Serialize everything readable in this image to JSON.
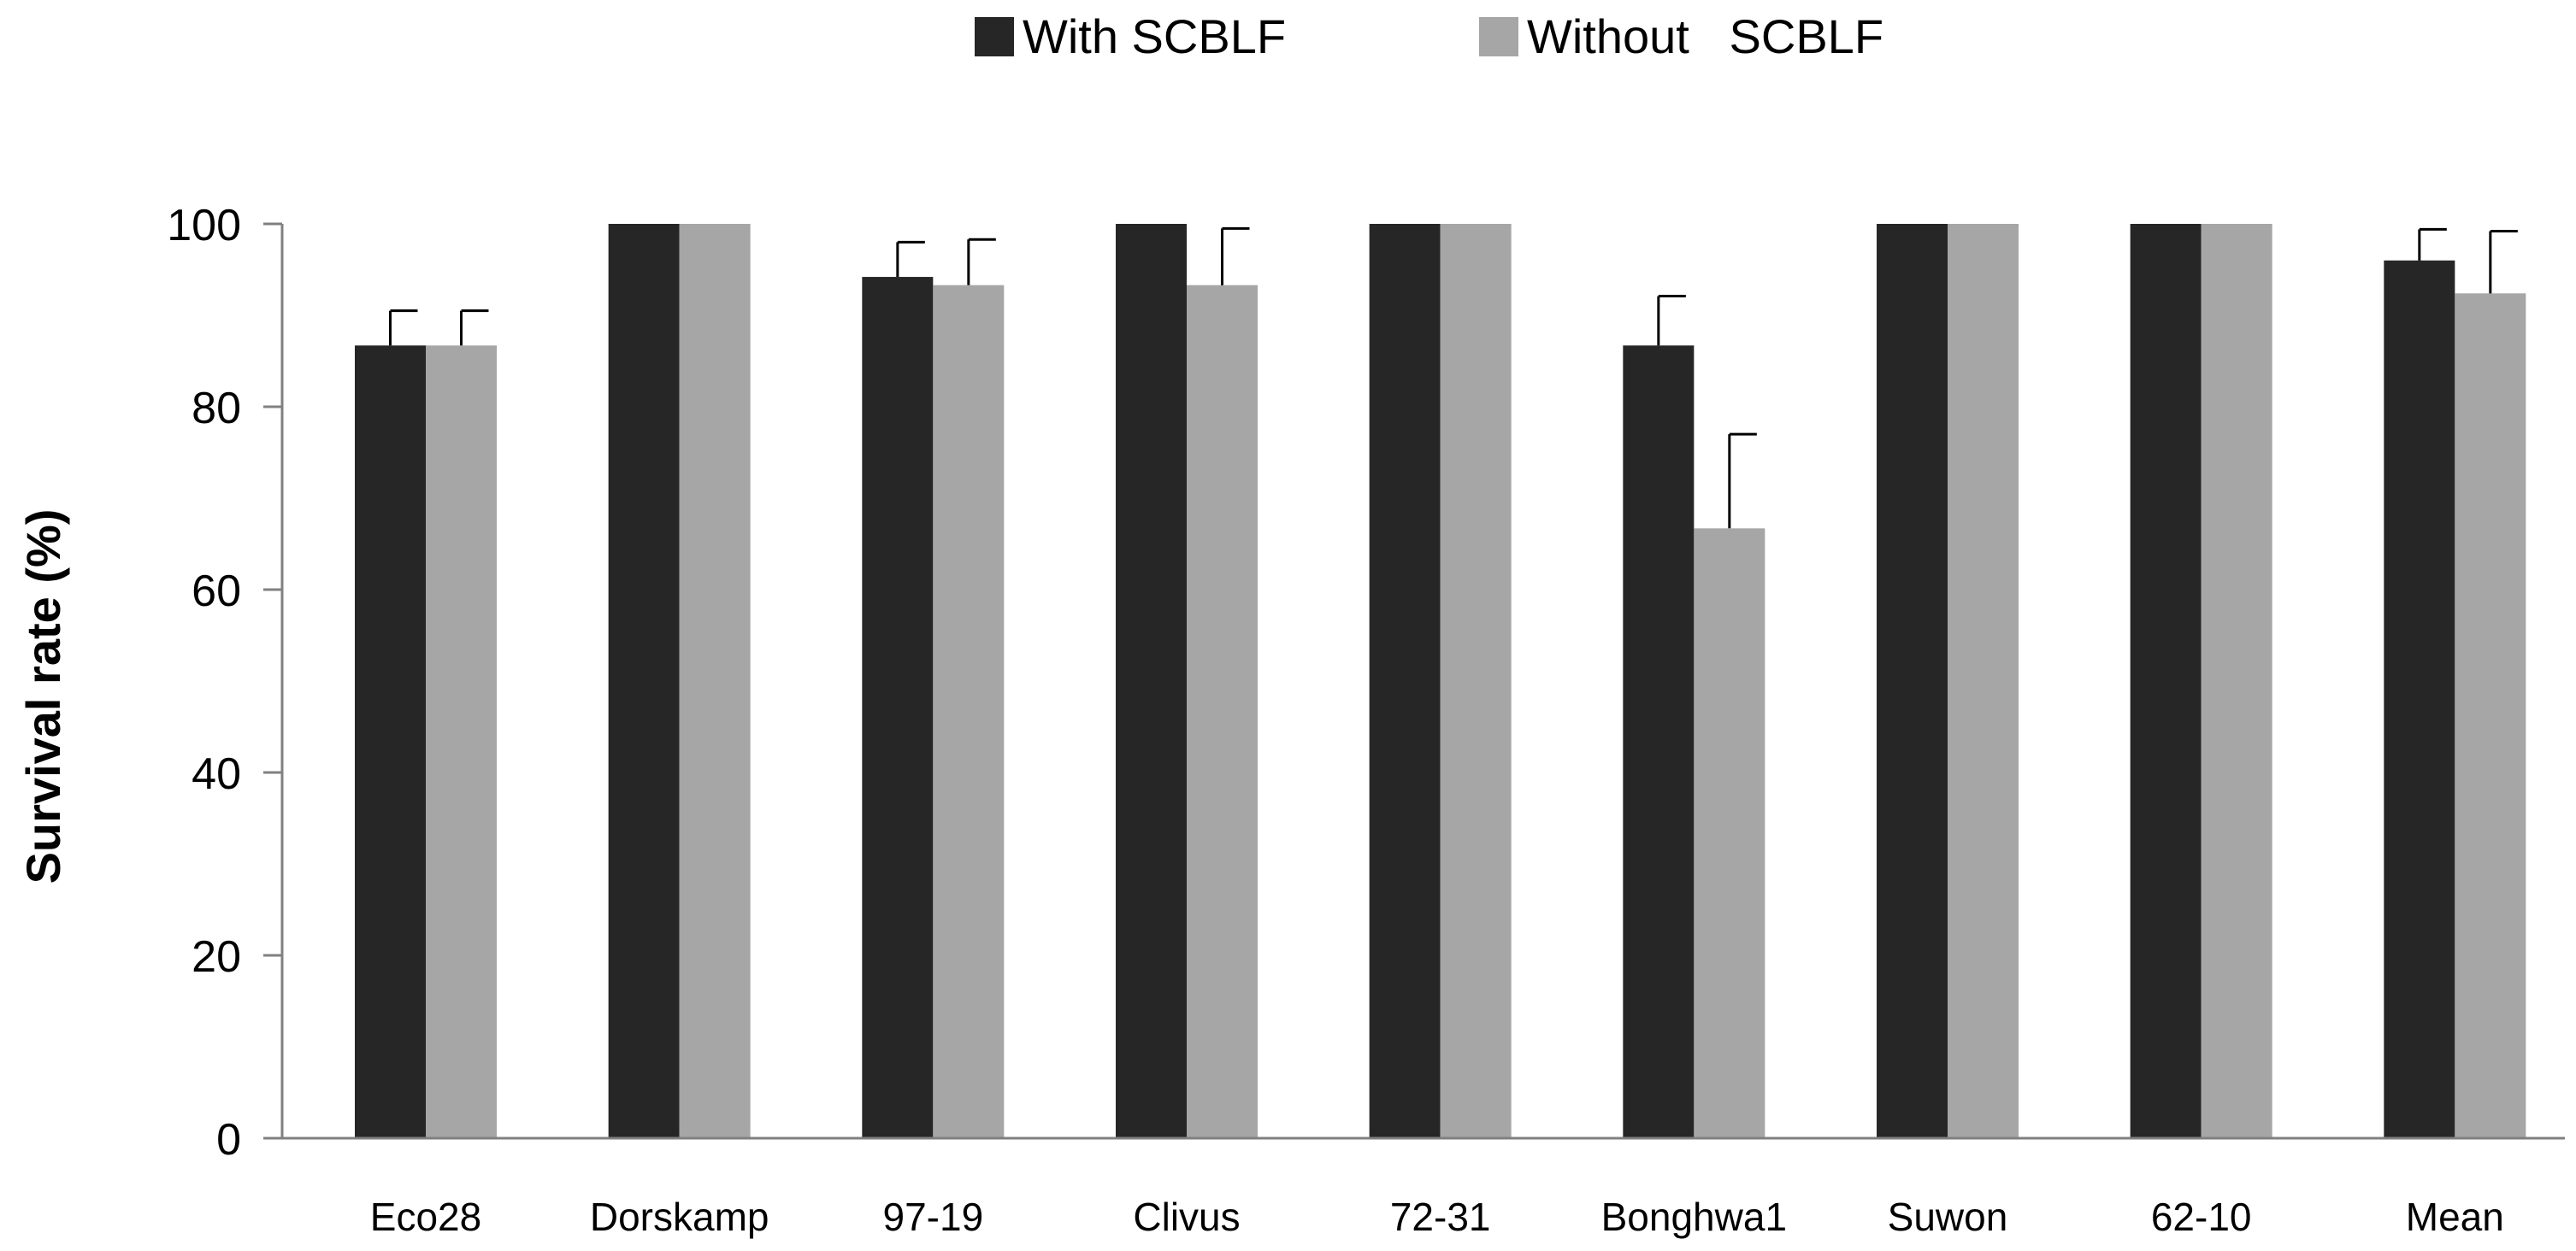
{
  "chart_data": {
    "type": "bar",
    "title": "",
    "xlabel": "",
    "ylabel": "Survival  rate  (%)",
    "ylim": [
      0,
      100
    ],
    "yticks": [
      0,
      20,
      40,
      60,
      80,
      100
    ],
    "grid": false,
    "legend_position": "top-center",
    "categories": [
      "Eco28",
      "Dorskamp",
      "97-19",
      "Clivus",
      "72-31",
      "Bonghwa1",
      "Suwon",
      "62-10",
      "Mean"
    ],
    "series": [
      {
        "name": "With SCBLF",
        "color": "#262626",
        "values": [
          86.7,
          100,
          94.2,
          100,
          100,
          86.7,
          100,
          100,
          96.0
        ],
        "errors": [
          3.8,
          0,
          3.8,
          0,
          0,
          5.4,
          0,
          0,
          3.4
        ]
      },
      {
        "name": "Without   SCBLF",
        "color": "#a6a6a6",
        "values": [
          86.7,
          100,
          93.3,
          93.3,
          100,
          66.7,
          100,
          100,
          92.4
        ],
        "errors": [
          3.8,
          0,
          5.0,
          6.2,
          0,
          10.3,
          0,
          0,
          6.8
        ]
      }
    ]
  }
}
